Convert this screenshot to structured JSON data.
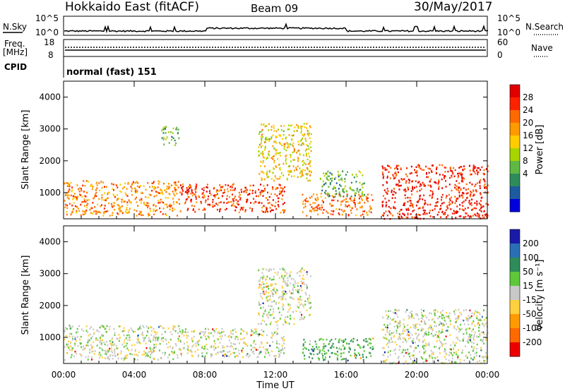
{
  "header": {
    "station": "Hokkaido East (fitACF)",
    "beam": "Beam 09",
    "date": "30/May/2017"
  },
  "status_panels": {
    "nsky_label": "N.Sky",
    "nsearch_label": "N.Search",
    "freq_label_line1": "Freq.",
    "freq_label_line2": "[MHz]",
    "nave_label": "Nave",
    "cpid_label": "CPID",
    "cpid_text": "normal (fast) 151",
    "noise_ticks": [
      "10^5",
      "10^0"
    ],
    "freq_ticks": [
      "18",
      "8"
    ],
    "nave_ticks": [
      "60",
      "0"
    ]
  },
  "chart_data": [
    {
      "type": "heatmap",
      "name": "power",
      "ylabel": "Slant Range [km]",
      "xlabel": "",
      "ylim": [
        180,
        4500
      ],
      "xlim": [
        0,
        24
      ],
      "yticks": [
        1000,
        2000,
        3000,
        4000
      ],
      "ytick_labels": [
        "1000",
        "2000",
        "3000",
        "4000"
      ],
      "colorbar": {
        "label": "Power [dB]",
        "ticks": [
          "28",
          "24",
          "20",
          "16",
          "12",
          "8",
          "4"
        ],
        "colors": [
          "#e00000",
          "#ff2200",
          "#ff6a00",
          "#ff9a00",
          "#ffcc00",
          "#a8d400",
          "#5fb844",
          "#2e8c5a",
          "#1e5a9e",
          "#0000dd"
        ]
      },
      "regions": [
        {
          "t0": 0.0,
          "t1": 6.5,
          "r0": 300,
          "r1": 1400,
          "value": 22
        },
        {
          "t0": 6.5,
          "t1": 12.5,
          "r0": 400,
          "r1": 1300,
          "value": 26
        },
        {
          "t0": 11.0,
          "t1": 14.0,
          "r0": 1400,
          "r1": 3200,
          "value": 18
        },
        {
          "t0": 13.5,
          "t1": 17.5,
          "r0": 300,
          "r1": 1000,
          "value": 24
        },
        {
          "t0": 14.5,
          "t1": 17.0,
          "r0": 900,
          "r1": 1700,
          "value": 12
        },
        {
          "t0": 18.0,
          "t1": 24.0,
          "r0": 200,
          "r1": 1900,
          "value": 28
        },
        {
          "t0": 5.5,
          "t1": 6.5,
          "r0": 2500,
          "r1": 3100,
          "value": 12
        }
      ]
    },
    {
      "type": "heatmap",
      "name": "velocity",
      "ylabel": "Slant Range [km]",
      "xlabel": "Time UT",
      "ylim": [
        180,
        4500
      ],
      "xlim": [
        0,
        24
      ],
      "yticks": [
        1000,
        2000,
        3000,
        4000
      ],
      "ytick_labels": [
        "1000",
        "2000",
        "3000",
        "4000"
      ],
      "xticks": [
        0,
        4,
        8,
        12,
        16,
        20,
        24
      ],
      "xtick_labels": [
        "00:00",
        "04:00",
        "08:00",
        "12:00",
        "16:00",
        "20:00",
        "00:00"
      ],
      "colorbar": {
        "label": "Velocity [m s⁻¹]",
        "ticks": [
          "200",
          "100",
          "50",
          "15",
          "-15",
          "-50",
          "-100",
          "-200"
        ],
        "colors": [
          "#1a1aa8",
          "#2a6eb5",
          "#2e8c5a",
          "#5ec83a",
          "#c8c8c8",
          "#ffd040",
          "#ff9a00",
          "#ff6a00",
          "#ee0000"
        ]
      },
      "regions": [
        {
          "t0": 0.0,
          "t1": 6.5,
          "r0": 300,
          "r1": 1400,
          "value": 0
        },
        {
          "t0": 6.5,
          "t1": 12.5,
          "r0": 400,
          "r1": 1300,
          "value": 0
        },
        {
          "t0": 11.0,
          "t1": 14.0,
          "r0": 1400,
          "r1": 3200,
          "value": 0
        },
        {
          "t0": 13.5,
          "t1": 17.5,
          "r0": 300,
          "r1": 1000,
          "value": 30
        },
        {
          "t0": 18.0,
          "t1": 24.0,
          "r0": 200,
          "r1": 1900,
          "value": 0
        }
      ]
    }
  ]
}
